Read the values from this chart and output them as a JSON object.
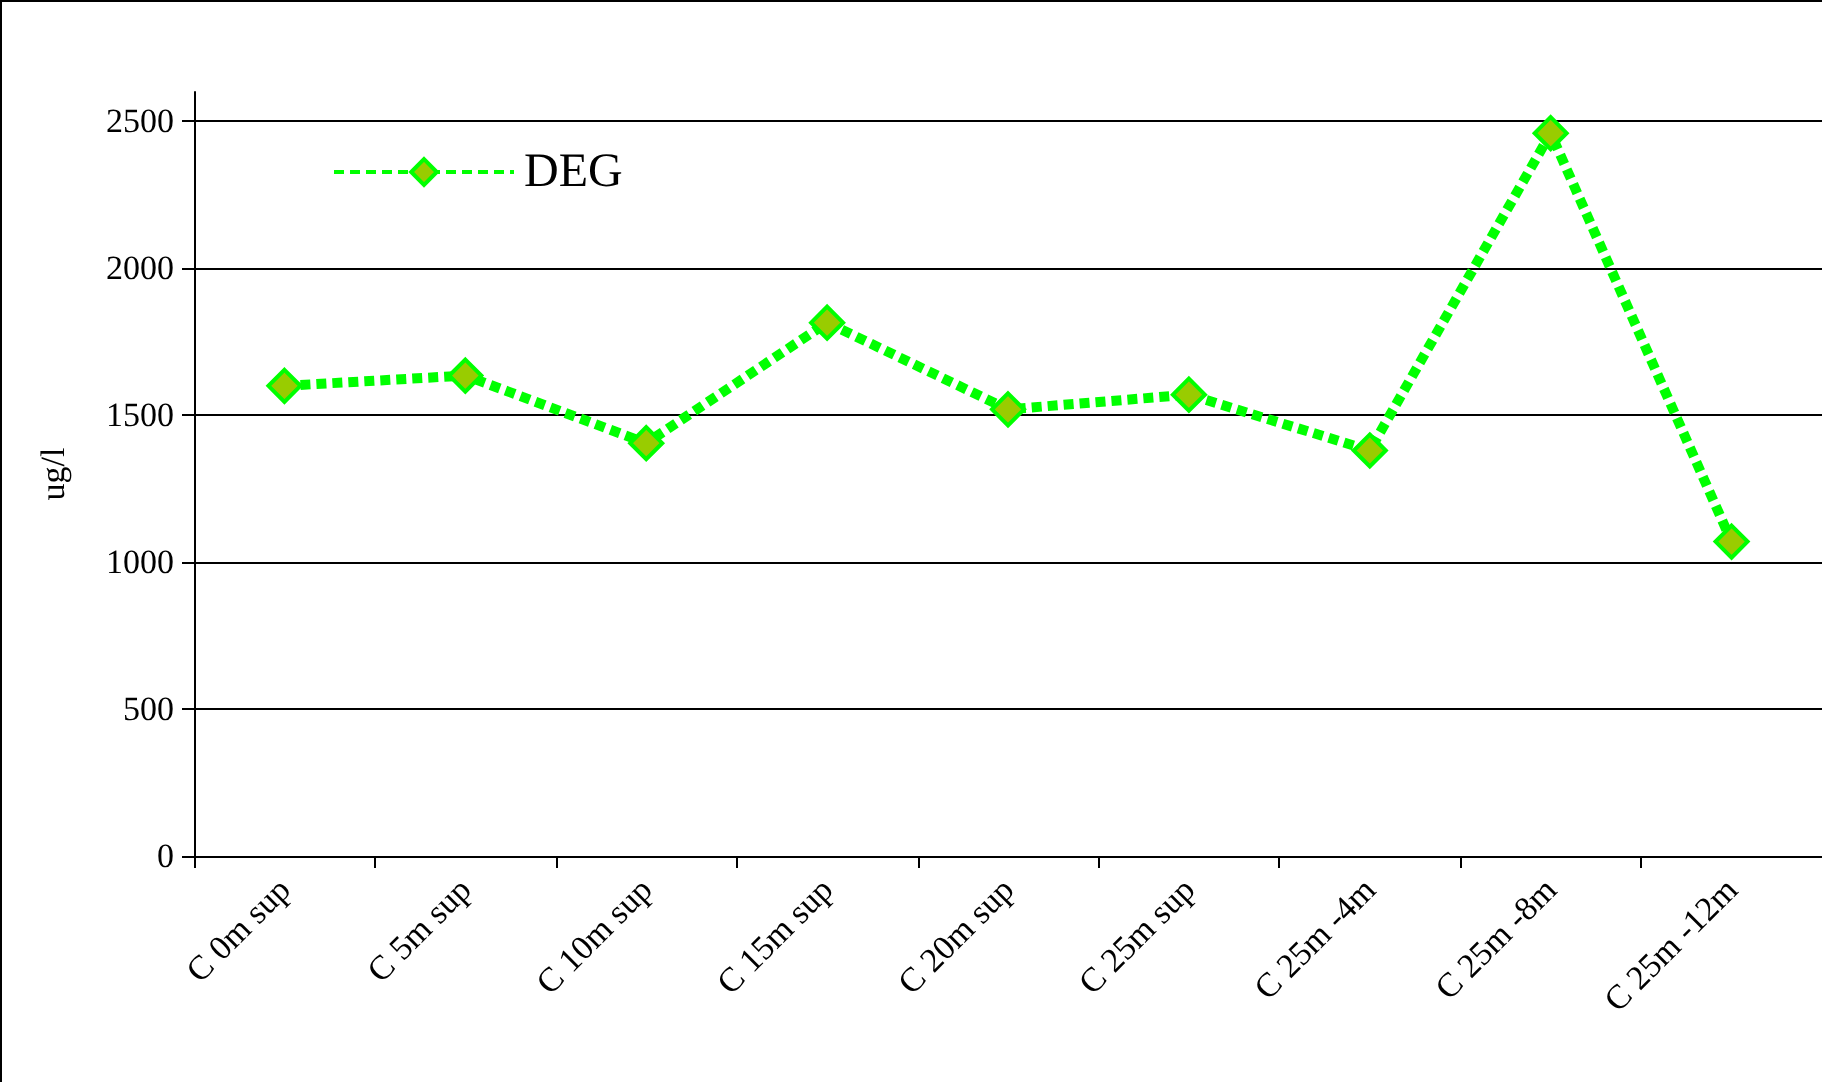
{
  "chart_data": {
    "type": "line",
    "ylabel": "ug/l",
    "categories": [
      "C 0m sup",
      "C 5m sup",
      "C 10m sup",
      "C 15m sup",
      "C 20m sup",
      "C 25m sup",
      "C 25m -4m",
      "C 25m -8m",
      "C 25m -12m"
    ],
    "series": [
      {
        "name": "DEG",
        "color": "#00ff00",
        "values": [
          1600,
          1635,
          1405,
          1815,
          1520,
          1570,
          1380,
          2460,
          1070
        ]
      }
    ],
    "ylim": [
      0,
      2600
    ],
    "yticks": [
      0,
      500,
      1000,
      1500,
      2000,
      2500
    ],
    "grid": "y",
    "legend": "top left",
    "marker": "diamond",
    "line_style": "dashed"
  }
}
